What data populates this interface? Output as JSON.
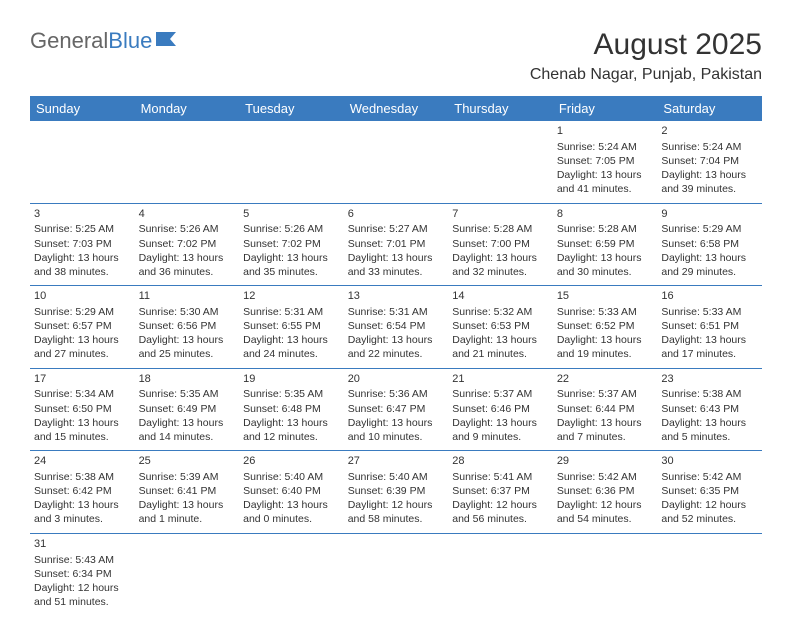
{
  "logo": {
    "general": "General",
    "blue": "Blue"
  },
  "title": "August 2025",
  "location": "Chenab Nagar, Punjab, Pakistan",
  "weekdays": [
    "Sunday",
    "Monday",
    "Tuesday",
    "Wednesday",
    "Thursday",
    "Friday",
    "Saturday"
  ],
  "colors": {
    "header_bg": "#3a7bbf",
    "header_text": "#ffffff",
    "border": "#3a7bbf",
    "text": "#333333"
  },
  "weeks": [
    [
      null,
      null,
      null,
      null,
      null,
      {
        "d": "1",
        "sr": "Sunrise: 5:24 AM",
        "ss": "Sunset: 7:05 PM",
        "dl": "Daylight: 13 hours and 41 minutes."
      },
      {
        "d": "2",
        "sr": "Sunrise: 5:24 AM",
        "ss": "Sunset: 7:04 PM",
        "dl": "Daylight: 13 hours and 39 minutes."
      }
    ],
    [
      {
        "d": "3",
        "sr": "Sunrise: 5:25 AM",
        "ss": "Sunset: 7:03 PM",
        "dl": "Daylight: 13 hours and 38 minutes."
      },
      {
        "d": "4",
        "sr": "Sunrise: 5:26 AM",
        "ss": "Sunset: 7:02 PM",
        "dl": "Daylight: 13 hours and 36 minutes."
      },
      {
        "d": "5",
        "sr": "Sunrise: 5:26 AM",
        "ss": "Sunset: 7:02 PM",
        "dl": "Daylight: 13 hours and 35 minutes."
      },
      {
        "d": "6",
        "sr": "Sunrise: 5:27 AM",
        "ss": "Sunset: 7:01 PM",
        "dl": "Daylight: 13 hours and 33 minutes."
      },
      {
        "d": "7",
        "sr": "Sunrise: 5:28 AM",
        "ss": "Sunset: 7:00 PM",
        "dl": "Daylight: 13 hours and 32 minutes."
      },
      {
        "d": "8",
        "sr": "Sunrise: 5:28 AM",
        "ss": "Sunset: 6:59 PM",
        "dl": "Daylight: 13 hours and 30 minutes."
      },
      {
        "d": "9",
        "sr": "Sunrise: 5:29 AM",
        "ss": "Sunset: 6:58 PM",
        "dl": "Daylight: 13 hours and 29 minutes."
      }
    ],
    [
      {
        "d": "10",
        "sr": "Sunrise: 5:29 AM",
        "ss": "Sunset: 6:57 PM",
        "dl": "Daylight: 13 hours and 27 minutes."
      },
      {
        "d": "11",
        "sr": "Sunrise: 5:30 AM",
        "ss": "Sunset: 6:56 PM",
        "dl": "Daylight: 13 hours and 25 minutes."
      },
      {
        "d": "12",
        "sr": "Sunrise: 5:31 AM",
        "ss": "Sunset: 6:55 PM",
        "dl": "Daylight: 13 hours and 24 minutes."
      },
      {
        "d": "13",
        "sr": "Sunrise: 5:31 AM",
        "ss": "Sunset: 6:54 PM",
        "dl": "Daylight: 13 hours and 22 minutes."
      },
      {
        "d": "14",
        "sr": "Sunrise: 5:32 AM",
        "ss": "Sunset: 6:53 PM",
        "dl": "Daylight: 13 hours and 21 minutes."
      },
      {
        "d": "15",
        "sr": "Sunrise: 5:33 AM",
        "ss": "Sunset: 6:52 PM",
        "dl": "Daylight: 13 hours and 19 minutes."
      },
      {
        "d": "16",
        "sr": "Sunrise: 5:33 AM",
        "ss": "Sunset: 6:51 PM",
        "dl": "Daylight: 13 hours and 17 minutes."
      }
    ],
    [
      {
        "d": "17",
        "sr": "Sunrise: 5:34 AM",
        "ss": "Sunset: 6:50 PM",
        "dl": "Daylight: 13 hours and 15 minutes."
      },
      {
        "d": "18",
        "sr": "Sunrise: 5:35 AM",
        "ss": "Sunset: 6:49 PM",
        "dl": "Daylight: 13 hours and 14 minutes."
      },
      {
        "d": "19",
        "sr": "Sunrise: 5:35 AM",
        "ss": "Sunset: 6:48 PM",
        "dl": "Daylight: 13 hours and 12 minutes."
      },
      {
        "d": "20",
        "sr": "Sunrise: 5:36 AM",
        "ss": "Sunset: 6:47 PM",
        "dl": "Daylight: 13 hours and 10 minutes."
      },
      {
        "d": "21",
        "sr": "Sunrise: 5:37 AM",
        "ss": "Sunset: 6:46 PM",
        "dl": "Daylight: 13 hours and 9 minutes."
      },
      {
        "d": "22",
        "sr": "Sunrise: 5:37 AM",
        "ss": "Sunset: 6:44 PM",
        "dl": "Daylight: 13 hours and 7 minutes."
      },
      {
        "d": "23",
        "sr": "Sunrise: 5:38 AM",
        "ss": "Sunset: 6:43 PM",
        "dl": "Daylight: 13 hours and 5 minutes."
      }
    ],
    [
      {
        "d": "24",
        "sr": "Sunrise: 5:38 AM",
        "ss": "Sunset: 6:42 PM",
        "dl": "Daylight: 13 hours and 3 minutes."
      },
      {
        "d": "25",
        "sr": "Sunrise: 5:39 AM",
        "ss": "Sunset: 6:41 PM",
        "dl": "Daylight: 13 hours and 1 minute."
      },
      {
        "d": "26",
        "sr": "Sunrise: 5:40 AM",
        "ss": "Sunset: 6:40 PM",
        "dl": "Daylight: 13 hours and 0 minutes."
      },
      {
        "d": "27",
        "sr": "Sunrise: 5:40 AM",
        "ss": "Sunset: 6:39 PM",
        "dl": "Daylight: 12 hours and 58 minutes."
      },
      {
        "d": "28",
        "sr": "Sunrise: 5:41 AM",
        "ss": "Sunset: 6:37 PM",
        "dl": "Daylight: 12 hours and 56 minutes."
      },
      {
        "d": "29",
        "sr": "Sunrise: 5:42 AM",
        "ss": "Sunset: 6:36 PM",
        "dl": "Daylight: 12 hours and 54 minutes."
      },
      {
        "d": "30",
        "sr": "Sunrise: 5:42 AM",
        "ss": "Sunset: 6:35 PM",
        "dl": "Daylight: 12 hours and 52 minutes."
      }
    ],
    [
      {
        "d": "31",
        "sr": "Sunrise: 5:43 AM",
        "ss": "Sunset: 6:34 PM",
        "dl": "Daylight: 12 hours and 51 minutes."
      },
      null,
      null,
      null,
      null,
      null,
      null
    ]
  ]
}
